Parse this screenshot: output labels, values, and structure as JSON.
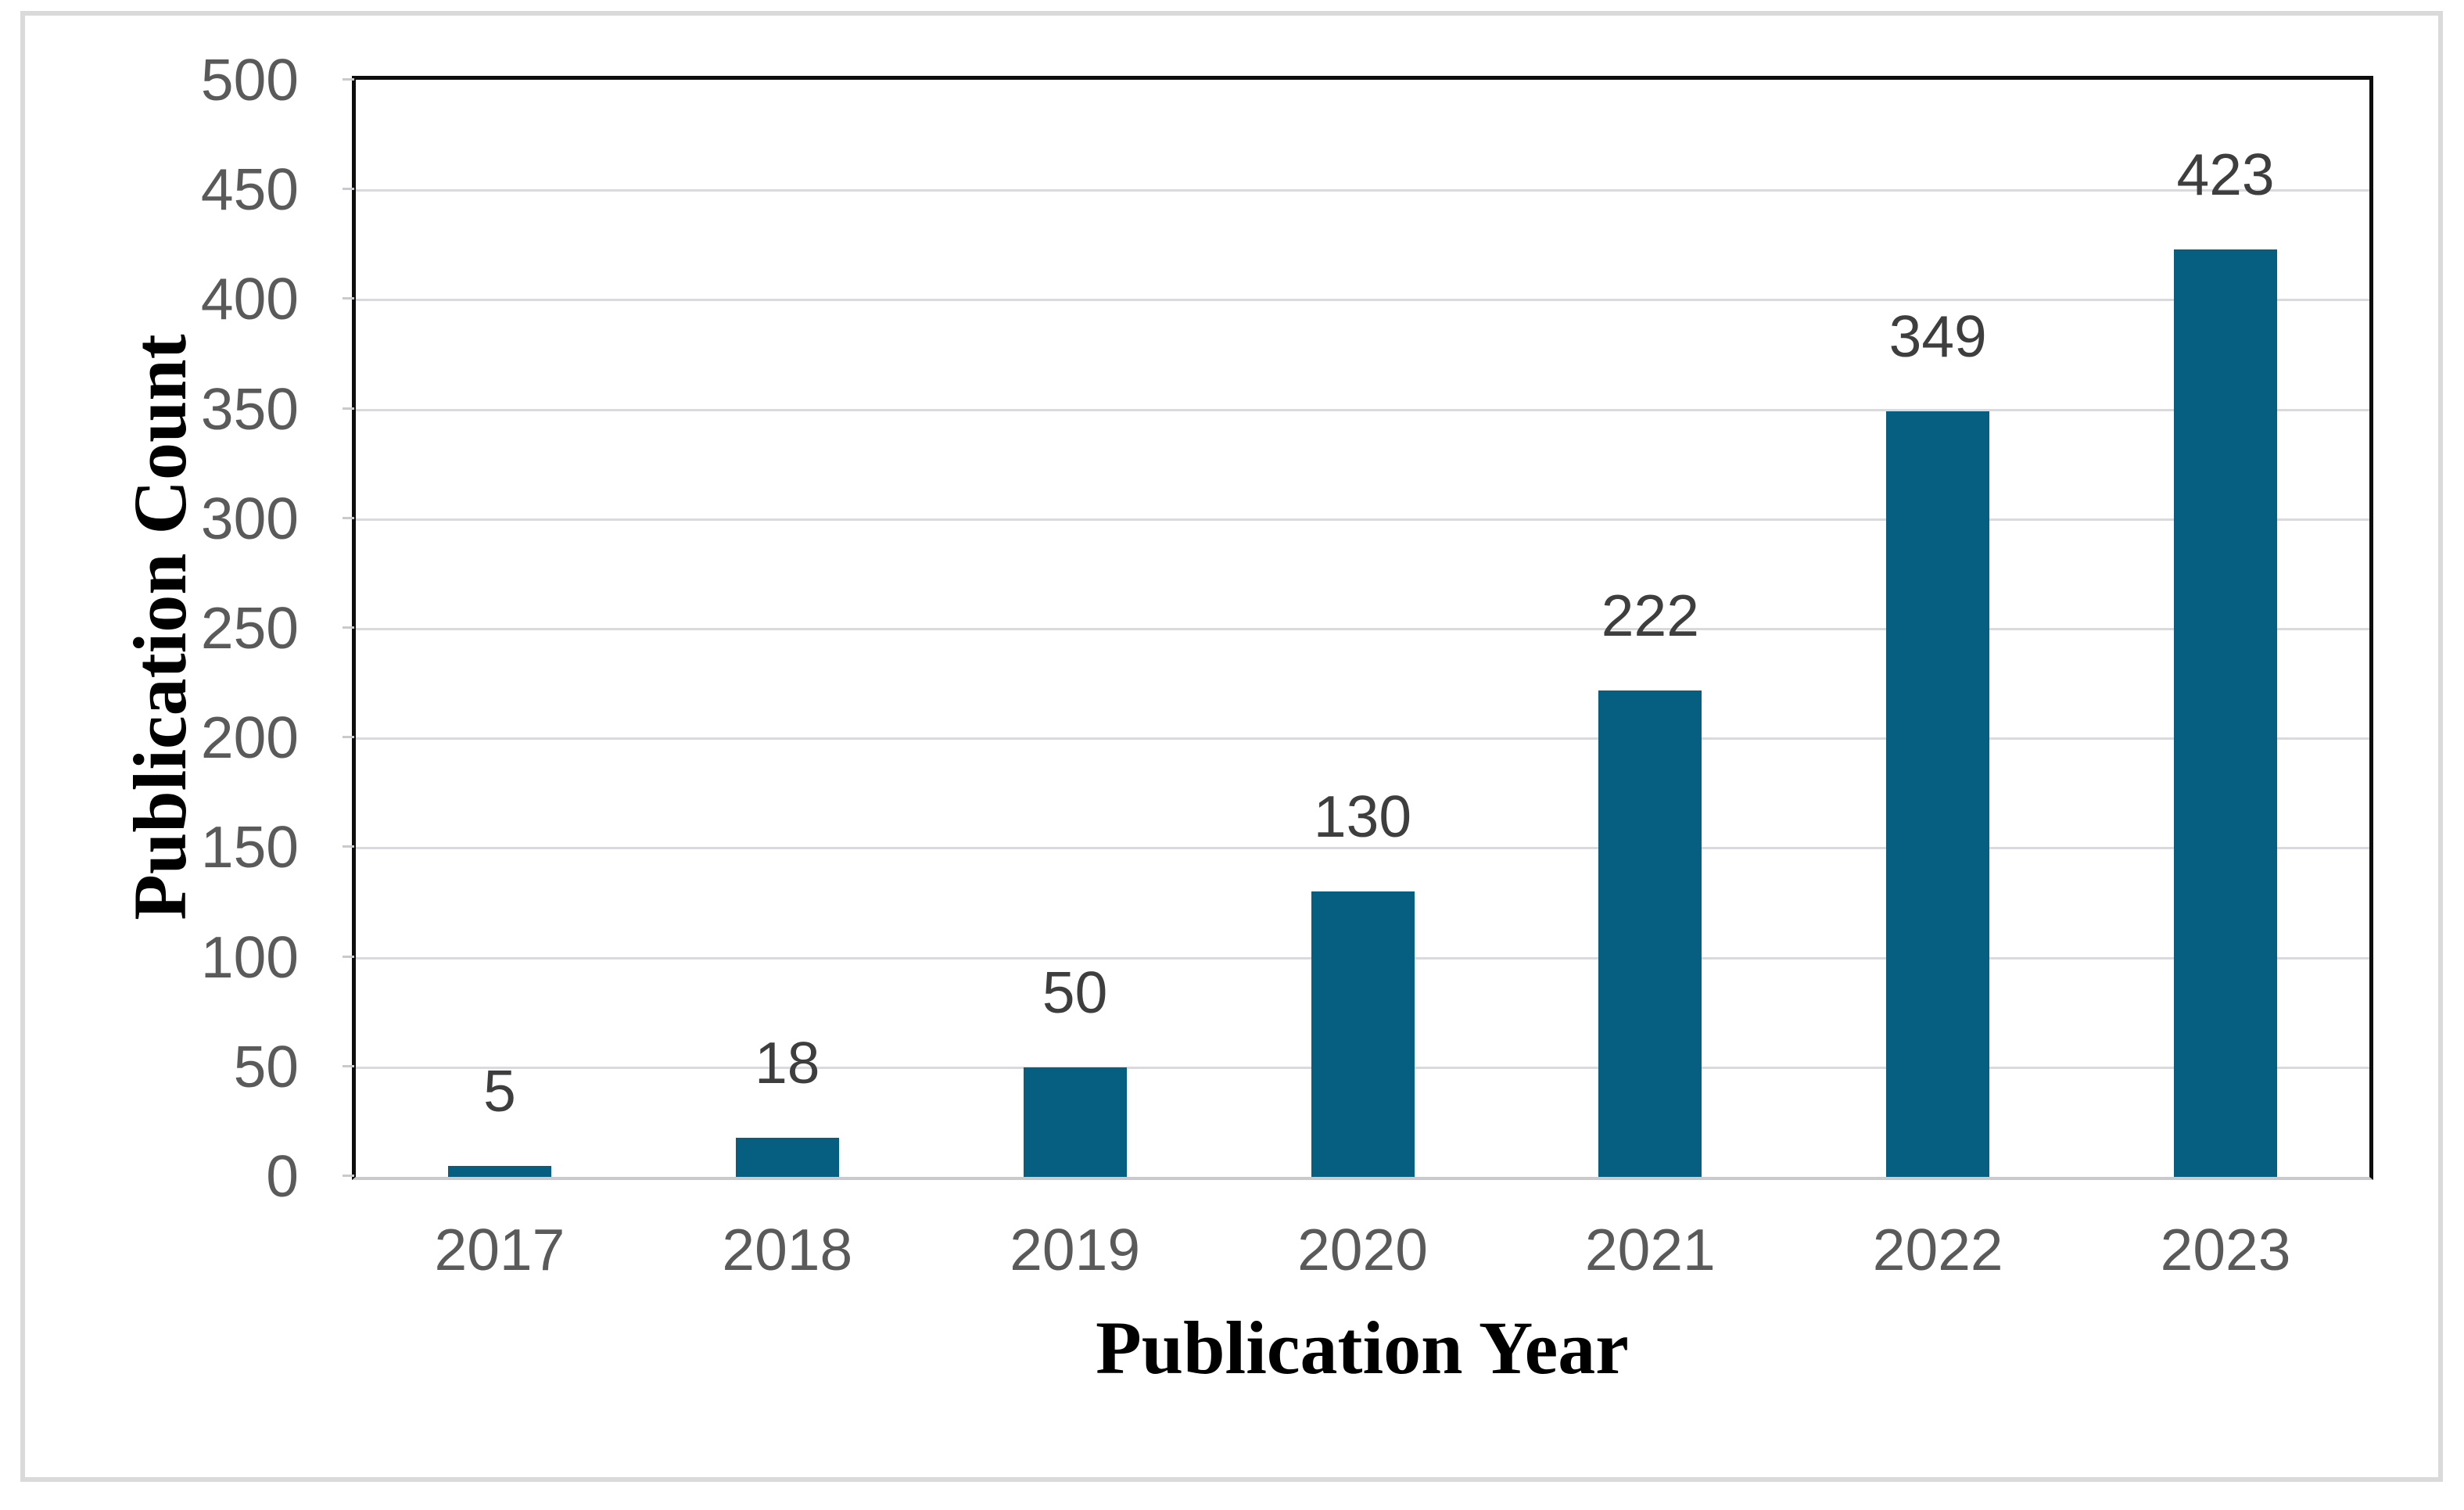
{
  "chart_data": {
    "type": "bar",
    "title": "",
    "categories": [
      "2017",
      "2018",
      "2019",
      "2020",
      "2021",
      "2022",
      "2023"
    ],
    "values": [
      5,
      18,
      50,
      130,
      222,
      349,
      423
    ],
    "data_labels": [
      "5",
      "18",
      "50",
      "130",
      "222",
      "349",
      "423"
    ],
    "xlabel": "Publication Year",
    "ylabel": "Publication Count",
    "ylim": [
      0,
      500
    ],
    "yticks": [
      0,
      50,
      100,
      150,
      200,
      250,
      300,
      350,
      400,
      450,
      500
    ],
    "grid": true,
    "legend": false
  },
  "colors": {
    "bar": "#065F80",
    "gridline": "#D9D9DE",
    "plot_border": "#0D0D0D",
    "baseline": "#C9C9CE",
    "tick_label": "#5A5A5A",
    "data_label": "#3E3E3E",
    "axis_title": "#000000",
    "outer_frame": "#DADADA",
    "background": "#FFFFFF"
  }
}
